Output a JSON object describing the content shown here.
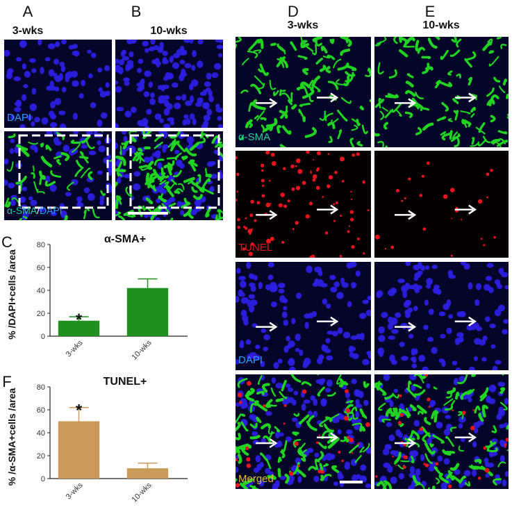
{
  "panel_letters": {
    "a": "A",
    "b": "B",
    "c": "C",
    "d": "D",
    "e": "E",
    "f": "F"
  },
  "column_titles": {
    "a": "3-wks",
    "b": "10-wks",
    "d": "3-wks",
    "e": "10-wks"
  },
  "image_labels": {
    "dapi": "DAPI",
    "sma_prefix": "α-SMA",
    "sma_sep": "/",
    "sma_dapi_suffix": "DAPI",
    "sma": "α-SMA",
    "tunel": "TUNEL",
    "merged": "Merged"
  },
  "colors": {
    "dapi": "#2b1fe0",
    "sma": "#21d421",
    "tunel": "#e8141e",
    "merged_label": "#e8c020",
    "bar_c": "#1f8f1f",
    "bar_f": "#c99a5a"
  },
  "chart_data": [
    {
      "type": "bar",
      "title": "α-SMA+",
      "ylabel": "% /DAPI+cells /area",
      "categories": [
        "3-wks",
        "10-wks"
      ],
      "values": [
        13.5,
        42
      ],
      "errors": [
        3.5,
        8
      ],
      "significance": [
        "*",
        ""
      ],
      "ylim": [
        0,
        80
      ],
      "yticks": [
        0,
        20,
        40,
        60,
        80
      ]
    },
    {
      "type": "bar",
      "title": "TUNEL+",
      "ylabel": "% /α-SMA+cells /area",
      "categories": [
        "3-wks",
        "10-wks"
      ],
      "values": [
        50,
        9
      ],
      "errors": [
        12,
        4.5
      ],
      "significance": [
        "*",
        ""
      ],
      "ylim": [
        0,
        80
      ],
      "yticks": [
        0,
        20,
        40,
        60,
        80
      ]
    }
  ]
}
